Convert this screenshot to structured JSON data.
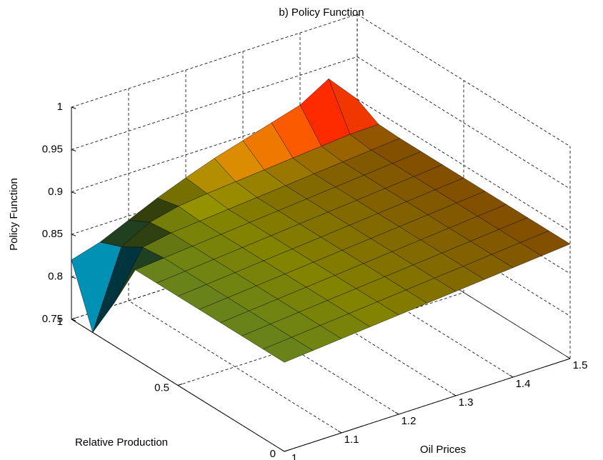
{
  "chart_data": {
    "type": "surface",
    "title": "b) Policy Function",
    "xlabel": "Oil Prices",
    "ylabel": "Relative Production",
    "zlabel": "Policy Function",
    "x": [
      1,
      1.05,
      1.1,
      1.15,
      1.2,
      1.25,
      1.3,
      1.35,
      1.4,
      1.45,
      1.5
    ],
    "y": [
      0,
      0.1,
      0.2,
      0.3,
      0.4,
      0.5,
      0.6,
      0.7,
      0.8,
      0.9,
      1
    ],
    "z": [
      [
        0.855,
        0.858,
        0.861,
        0.864,
        0.867,
        0.87,
        0.873,
        0.876,
        0.879,
        0.882,
        0.885
      ],
      [
        0.855,
        0.858,
        0.861,
        0.864,
        0.867,
        0.87,
        0.873,
        0.876,
        0.879,
        0.882,
        0.885
      ],
      [
        0.855,
        0.858,
        0.861,
        0.864,
        0.867,
        0.87,
        0.873,
        0.876,
        0.879,
        0.882,
        0.885
      ],
      [
        0.855,
        0.858,
        0.861,
        0.864,
        0.867,
        0.87,
        0.873,
        0.876,
        0.879,
        0.882,
        0.885
      ],
      [
        0.855,
        0.858,
        0.861,
        0.864,
        0.867,
        0.87,
        0.873,
        0.876,
        0.879,
        0.882,
        0.885
      ],
      [
        0.855,
        0.858,
        0.861,
        0.864,
        0.867,
        0.87,
        0.873,
        0.876,
        0.879,
        0.882,
        0.885
      ],
      [
        0.855,
        0.858,
        0.861,
        0.864,
        0.867,
        0.87,
        0.873,
        0.876,
        0.879,
        0.882,
        0.885
      ],
      [
        0.855,
        0.858,
        0.861,
        0.864,
        0.867,
        0.87,
        0.873,
        0.876,
        0.879,
        0.882,
        0.885
      ],
      [
        0.8,
        0.855,
        0.861,
        0.864,
        0.867,
        0.87,
        0.873,
        0.876,
        0.879,
        0.882,
        0.885
      ],
      [
        0.75,
        0.84,
        0.858,
        0.866,
        0.87,
        0.873,
        0.876,
        0.879,
        0.882,
        0.885,
        0.886
      ],
      [
        0.82,
        0.83,
        0.845,
        0.86,
        0.873,
        0.885,
        0.895,
        0.905,
        0.915,
        0.935,
        0.9
      ]
    ],
    "xlim": [
      1,
      1.5
    ],
    "ylim": [
      0,
      1
    ],
    "zlim": [
      0.75,
      1
    ],
    "xticks": [
      1,
      1.1,
      1.2,
      1.3,
      1.4,
      1.5
    ],
    "yticks": [
      0,
      0.5,
      1
    ],
    "zticks": [
      0.75,
      0.8,
      0.85,
      0.9,
      0.95,
      1
    ],
    "grid": true,
    "colormap": "jet",
    "edgecolor": "#000000"
  }
}
